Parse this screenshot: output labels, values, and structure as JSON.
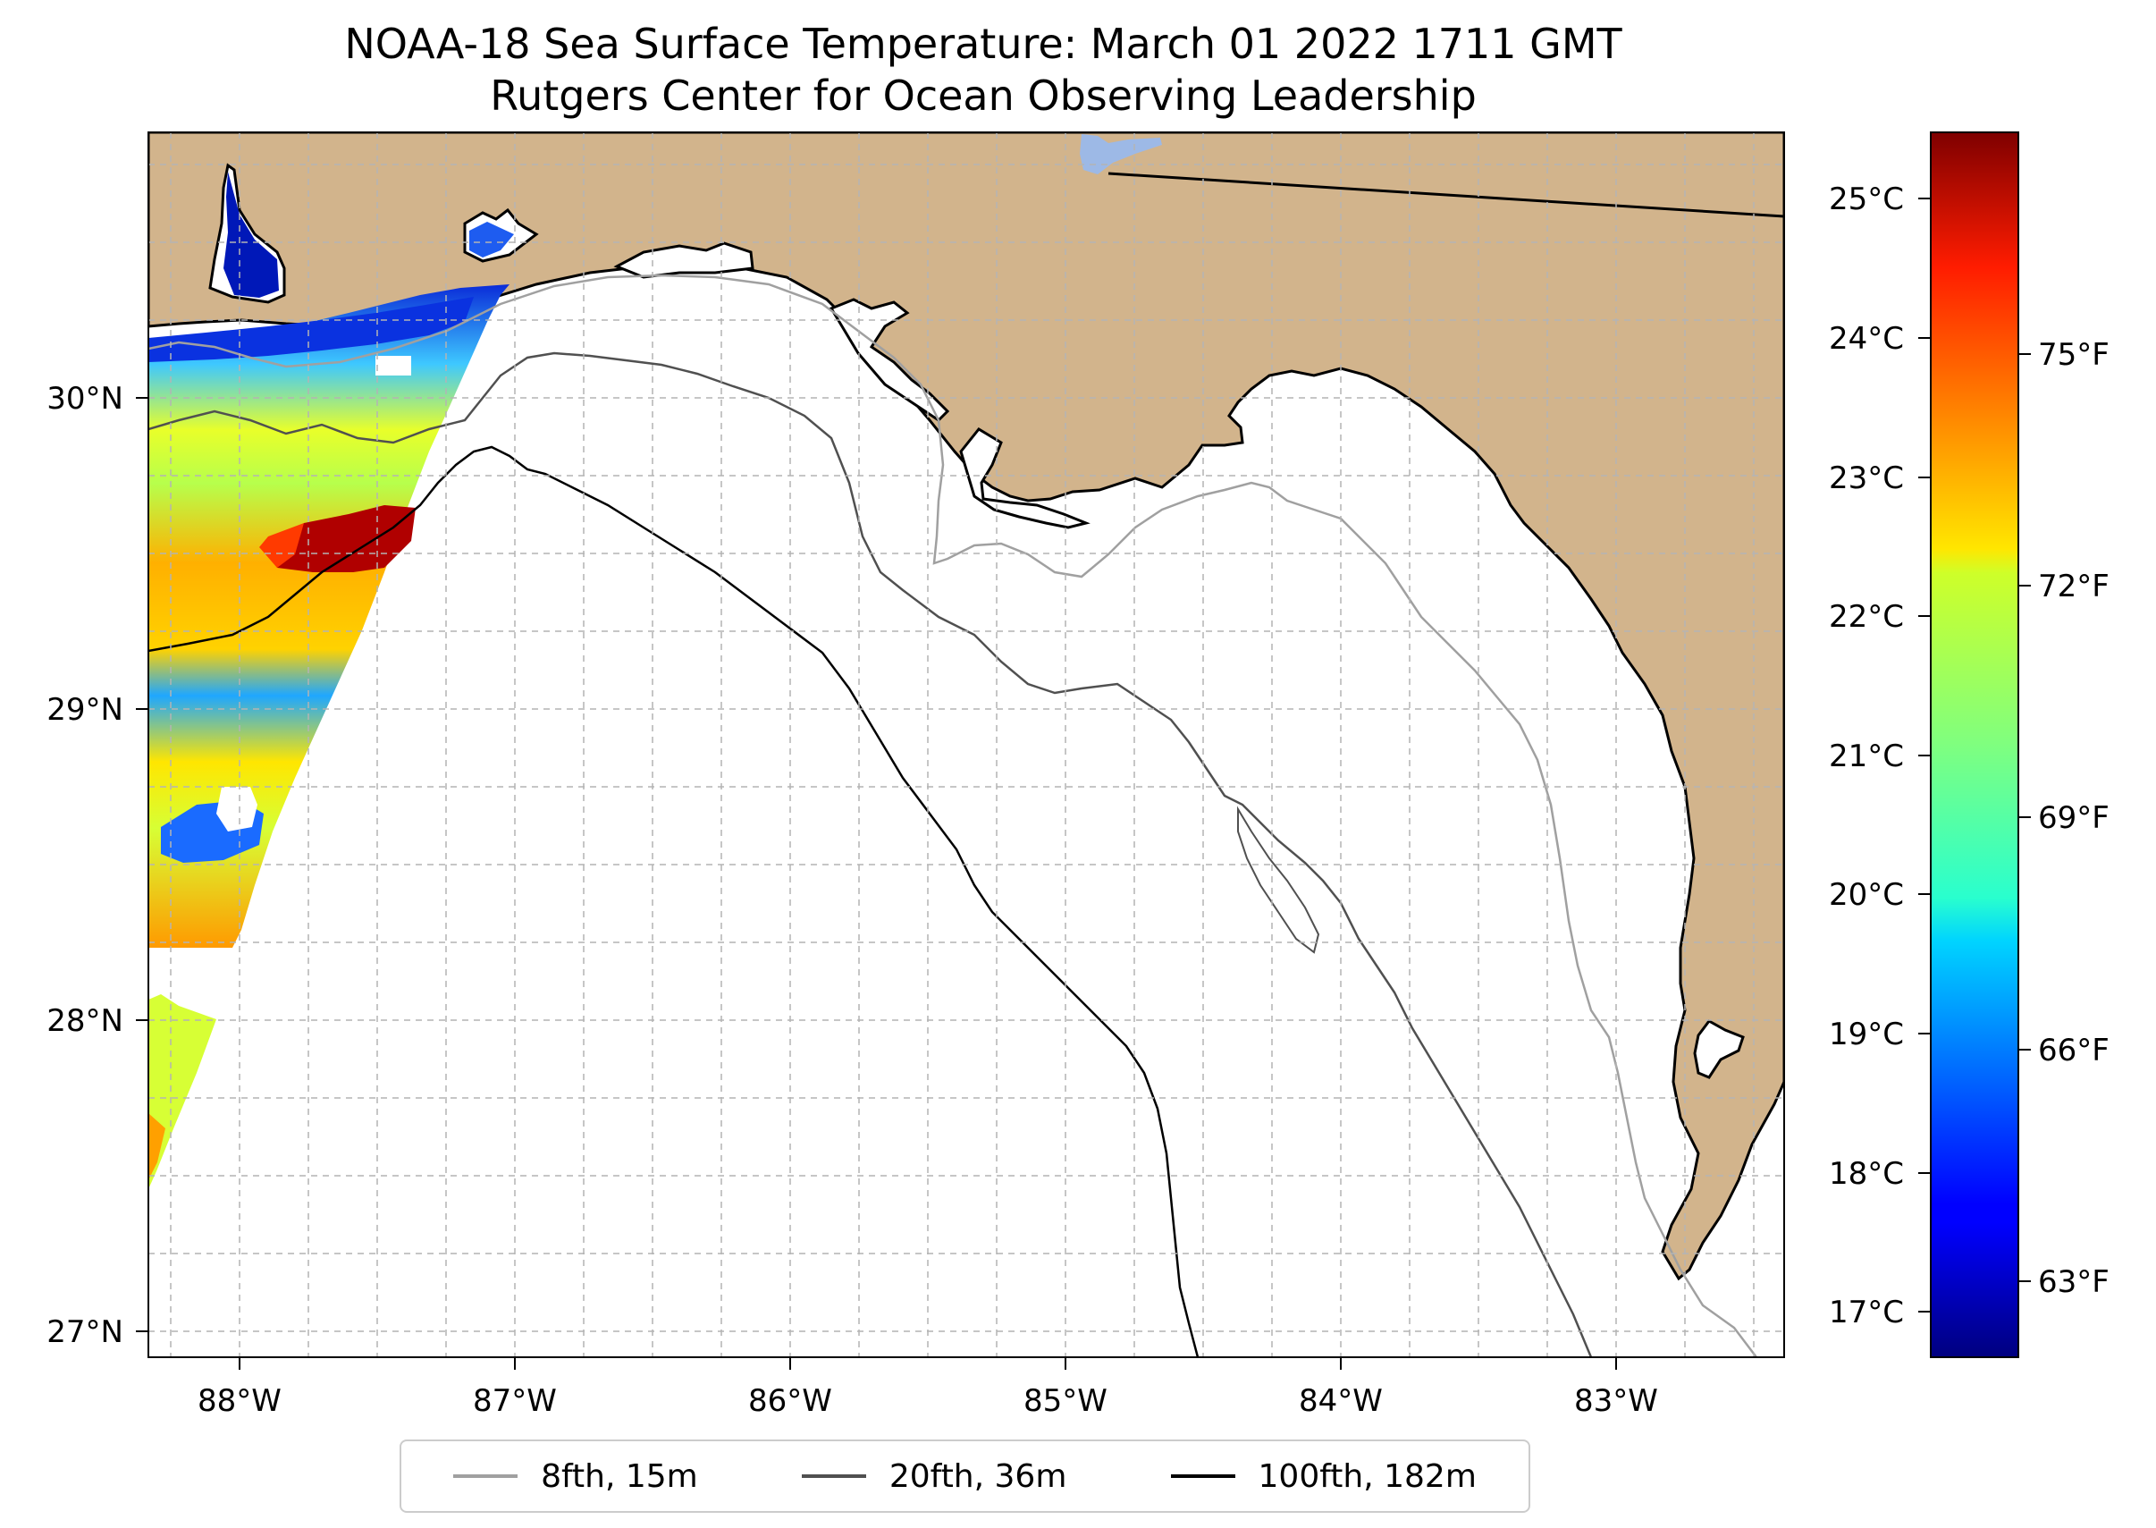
{
  "title_line1": "NOAA-18 Sea Surface Temperature: March 01 2022 1711 GMT",
  "title_line2": "Rutgers Center for Ocean Observing Leadership",
  "map": {
    "lon_ticks": [
      "88°W",
      "87°W",
      "86°W",
      "85°W",
      "84°W",
      "83°W"
    ],
    "lat_ticks": [
      "30°N",
      "29°N",
      "28°N",
      "27°N"
    ],
    "land_color": "#d2b48c",
    "ocean_color": "#ffffff"
  },
  "colorbar": {
    "celsius_ticks": [
      "25°C",
      "24°C",
      "23°C",
      "22°C",
      "21°C",
      "20°C",
      "19°C",
      "18°C",
      "17°C"
    ],
    "fahrenheit_ticks": [
      "75°F",
      "72°F",
      "69°F",
      "66°F",
      "63°F"
    ],
    "colormap": "jet"
  },
  "legend": [
    {
      "label": "8fth, 15m",
      "color": "#a0a0a0"
    },
    {
      "label": "20fth, 36m",
      "color": "#505050"
    },
    {
      "label": "100fth, 182m",
      "color": "#000000"
    }
  ]
}
